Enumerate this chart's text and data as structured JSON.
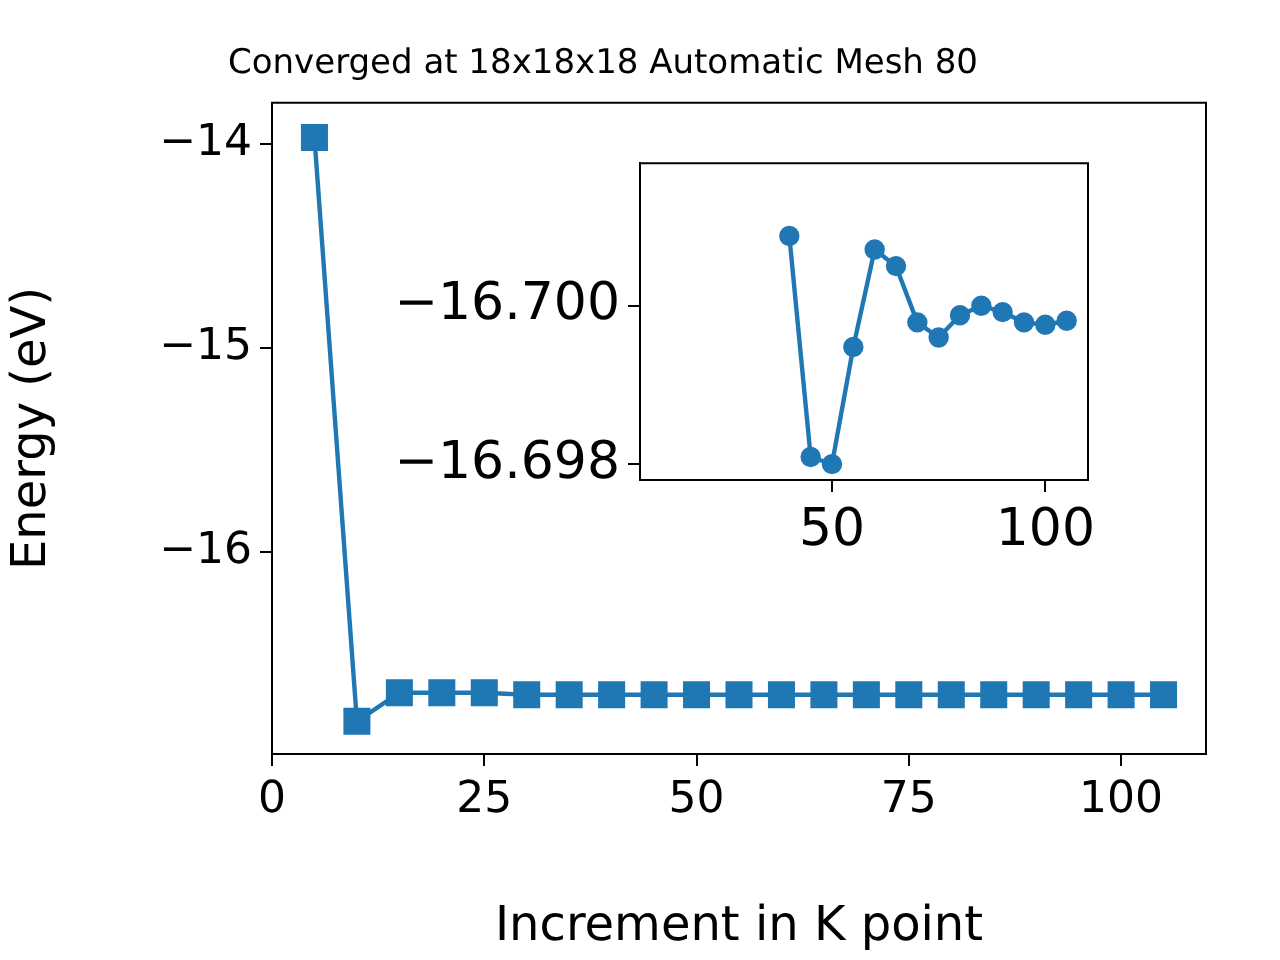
{
  "chart_data": [
    {
      "type": "line",
      "title": "Converged at 18x18x18 Automatic Mesh 80",
      "xlabel": "Increment in K point",
      "ylabel": "Energy (eV)",
      "x": [
        5,
        10,
        15,
        20,
        25,
        30,
        35,
        40,
        45,
        50,
        55,
        60,
        65,
        70,
        75,
        80,
        85,
        90,
        95,
        100,
        105
      ],
      "series": [
        {
          "color": "#1f77b4",
          "values": [
            -13.97,
            -16.83,
            -16.69,
            -16.69,
            -16.69,
            -16.7,
            -16.7,
            -16.7,
            -16.7,
            -16.7,
            -16.7,
            -16.7,
            -16.7,
            -16.7,
            -16.7,
            -16.7,
            -16.7,
            -16.7,
            -16.7,
            -16.7,
            -16.7
          ]
        }
      ],
      "xlim": [
        0,
        110
      ],
      "xticks": [
        0,
        25,
        50,
        75,
        100
      ],
      "ylim": [
        -16.99,
        -13.8
      ],
      "yticks": [
        -16,
        -15,
        -14
      ],
      "grid": false,
      "legend": false,
      "marker": "square",
      "line_style": "solid"
    },
    {
      "type": "line",
      "x": [
        40,
        45,
        50,
        55,
        60,
        65,
        70,
        75,
        80,
        85,
        90,
        95,
        100,
        105
      ],
      "series": [
        {
          "color": "#1f77b4",
          "values": [
            -16.70088,
            -16.69809,
            -16.698,
            -16.69948,
            -16.70071,
            -16.7005,
            -16.69979,
            -16.6996,
            -16.69988,
            -16.7,
            -16.69992,
            -16.69979,
            -16.69976,
            -16.69981
          ]
        }
      ],
      "xlim": [
        5,
        110
      ],
      "xticks": [
        50,
        100
      ],
      "ylim": [
        -16.6978,
        -16.7018
      ],
      "yticks": [
        {
          "value": -16.7,
          "label": "−16.700"
        },
        {
          "value": -16.698,
          "label": "−16.698"
        }
      ],
      "grid": false,
      "legend": false,
      "marker": "circle",
      "line_style": "solid"
    }
  ]
}
